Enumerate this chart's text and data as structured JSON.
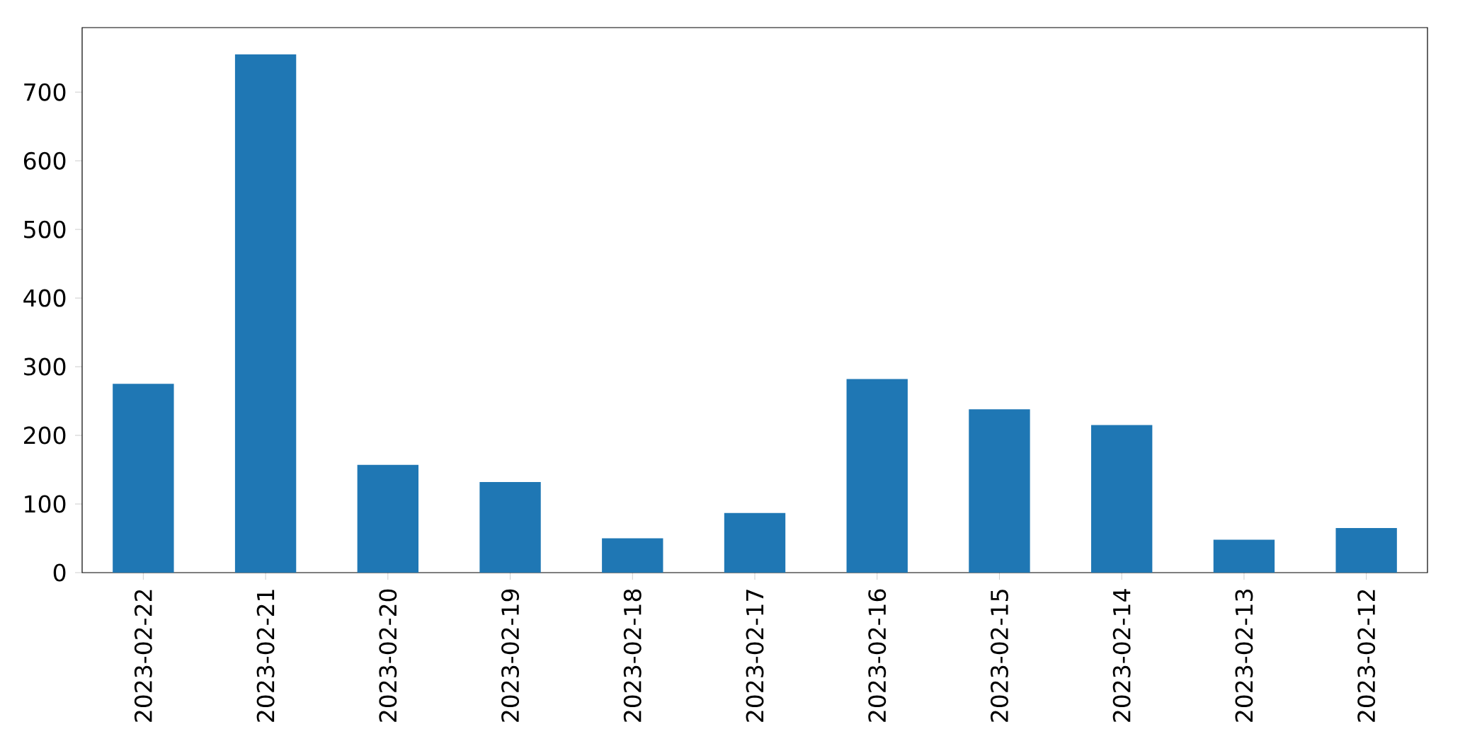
{
  "chart_data": {
    "type": "bar",
    "categories": [
      "2023-02-22",
      "2023-02-21",
      "2023-02-20",
      "2023-02-19",
      "2023-02-18",
      "2023-02-17",
      "2023-02-16",
      "2023-02-15",
      "2023-02-14",
      "2023-02-13",
      "2023-02-12"
    ],
    "values": [
      275,
      755,
      157,
      132,
      50,
      87,
      282,
      238,
      215,
      48,
      65
    ],
    "color": "#1f77b4",
    "ylim": [
      0,
      794
    ],
    "yticks": [
      0,
      100,
      200,
      300,
      400,
      500,
      600,
      700
    ],
    "grid": false
  }
}
